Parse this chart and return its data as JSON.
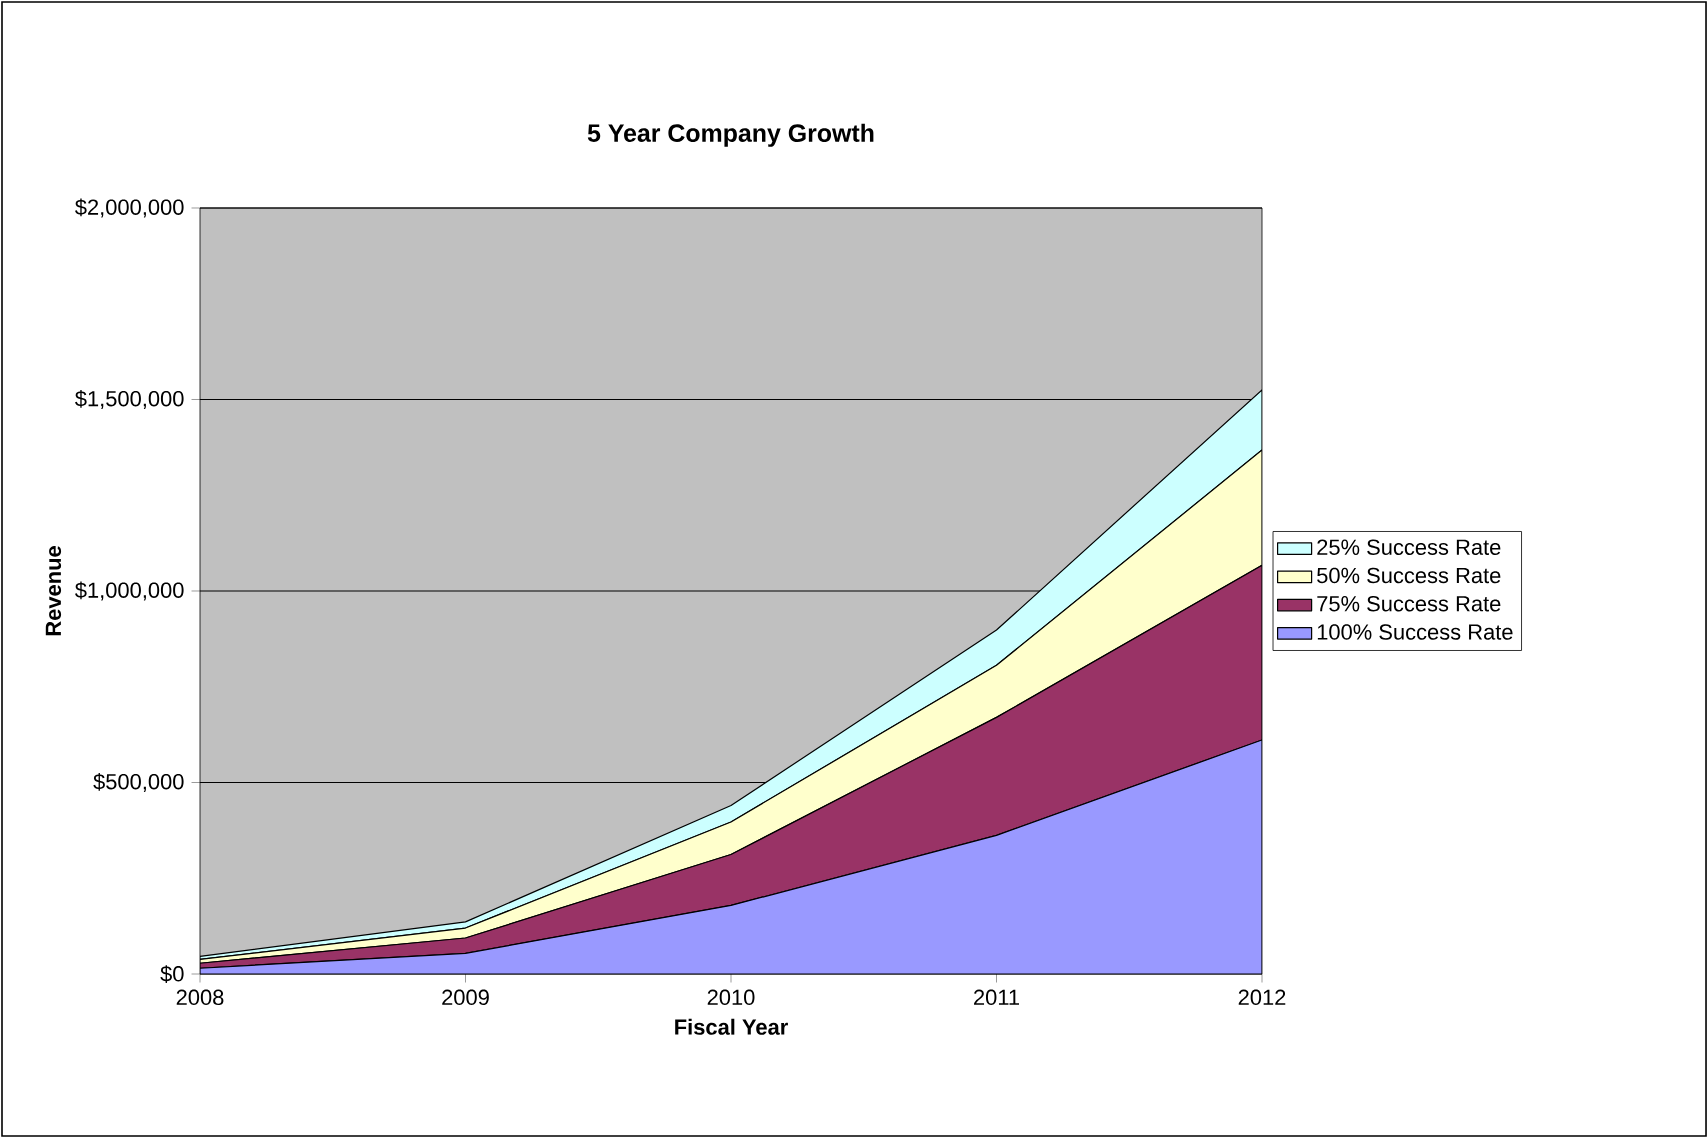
{
  "chart_data": {
    "type": "area",
    "title": "5 Year Company Growth",
    "xlabel": "Fiscal Year",
    "ylabel": "Revenue",
    "stacked": true,
    "x": [
      2008,
      2009,
      2010,
      2011,
      2012
    ],
    "series": [
      {
        "name": "100% Success Rate",
        "color": "#9999ff",
        "values": [
          15000,
          54000,
          179000,
          362000,
          611000
        ]
      },
      {
        "name": "75% Success Rate",
        "color": "#993366",
        "values": [
          13000,
          40000,
          133000,
          308000,
          456000
        ]
      },
      {
        "name": "50% Success Rate",
        "color": "#ffffcc",
        "values": [
          10000,
          26000,
          85000,
          136000,
          301000
        ]
      },
      {
        "name": "25% Success Rate",
        "color": "#ccffff",
        "values": [
          8000,
          16000,
          43000,
          92000,
          157000
        ]
      }
    ],
    "xlim": [
      2008,
      2012
    ],
    "xticks": [
      2008,
      2009,
      2010,
      2011,
      2012
    ],
    "ylim": [
      0,
      2000000
    ],
    "yticks": [
      {
        "value": 0,
        "label": "$0"
      },
      {
        "value": 500000,
        "label": "$500,000"
      },
      {
        "value": 1000000,
        "label": "$1,000,000"
      },
      {
        "value": 1500000,
        "label": "$1,500,000"
      },
      {
        "value": 2000000,
        "label": "$2,000,000"
      }
    ],
    "grid": "y",
    "legend": "right"
  }
}
